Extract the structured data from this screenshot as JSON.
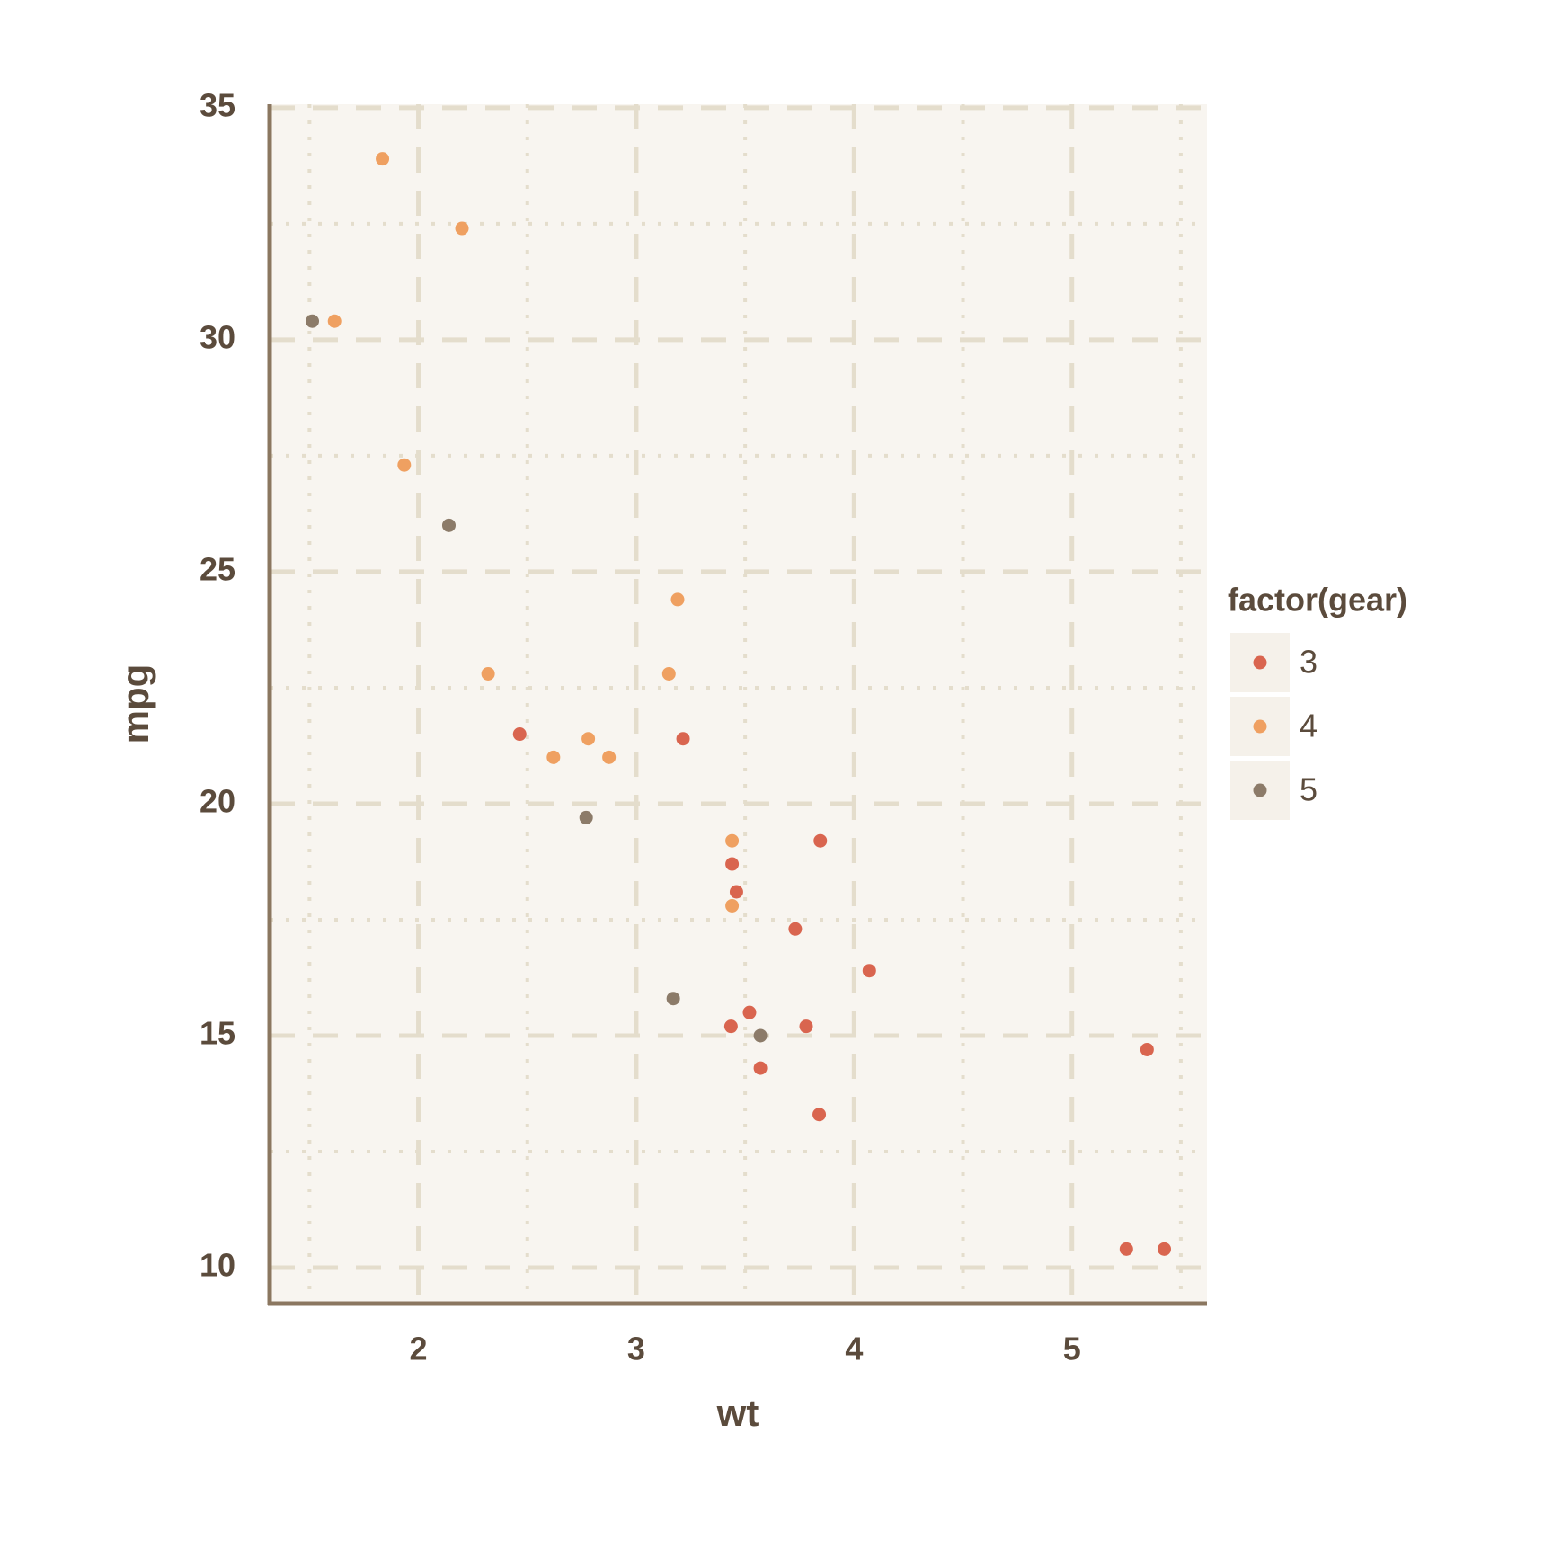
{
  "chart_data": {
    "type": "scatter",
    "x_label": "wt",
    "y_label": "mpg",
    "legend_title": "factor(gear)",
    "legend_position": "right",
    "xlim": [
      1.317,
      5.62
    ],
    "ylim": [
      9.225,
      35.075
    ],
    "xticks": [
      2,
      3,
      4,
      5
    ],
    "yticks": [
      10,
      15,
      20,
      25,
      30,
      35
    ],
    "x_minor_ticks": [
      1.5,
      2.5,
      3.5,
      4.5,
      5.5
    ],
    "y_minor_ticks": [
      12.5,
      17.5,
      22.5,
      27.5,
      32.5
    ],
    "grid": true,
    "series": [
      {
        "name": "3",
        "color": "#d9654f",
        "x": [
          3.215,
          3.44,
          3.46,
          3.57,
          4.07,
          3.73,
          3.78,
          5.25,
          5.424,
          5.345,
          2.465,
          3.52,
          3.435,
          3.84,
          3.845
        ],
        "values": [
          21.4,
          18.7,
          18.1,
          14.3,
          16.4,
          17.3,
          15.2,
          10.4,
          10.4,
          14.7,
          21.5,
          15.5,
          15.2,
          13.3,
          19.2
        ]
      },
      {
        "name": "4",
        "color": "#efa061",
        "x": [
          2.62,
          2.875,
          2.32,
          3.19,
          3.15,
          3.44,
          3.44,
          2.2,
          1.615,
          1.835,
          1.935,
          2.78
        ],
        "values": [
          21,
          21,
          22.8,
          24.4,
          22.8,
          19.2,
          17.8,
          32.4,
          30.4,
          33.9,
          27.3,
          21.4
        ]
      },
      {
        "name": "5",
        "color": "#8c7b69",
        "x": [
          2.14,
          1.513,
          3.17,
          2.77,
          3.57
        ],
        "values": [
          26,
          30.4,
          15.8,
          19.7,
          15
        ]
      }
    ]
  }
}
